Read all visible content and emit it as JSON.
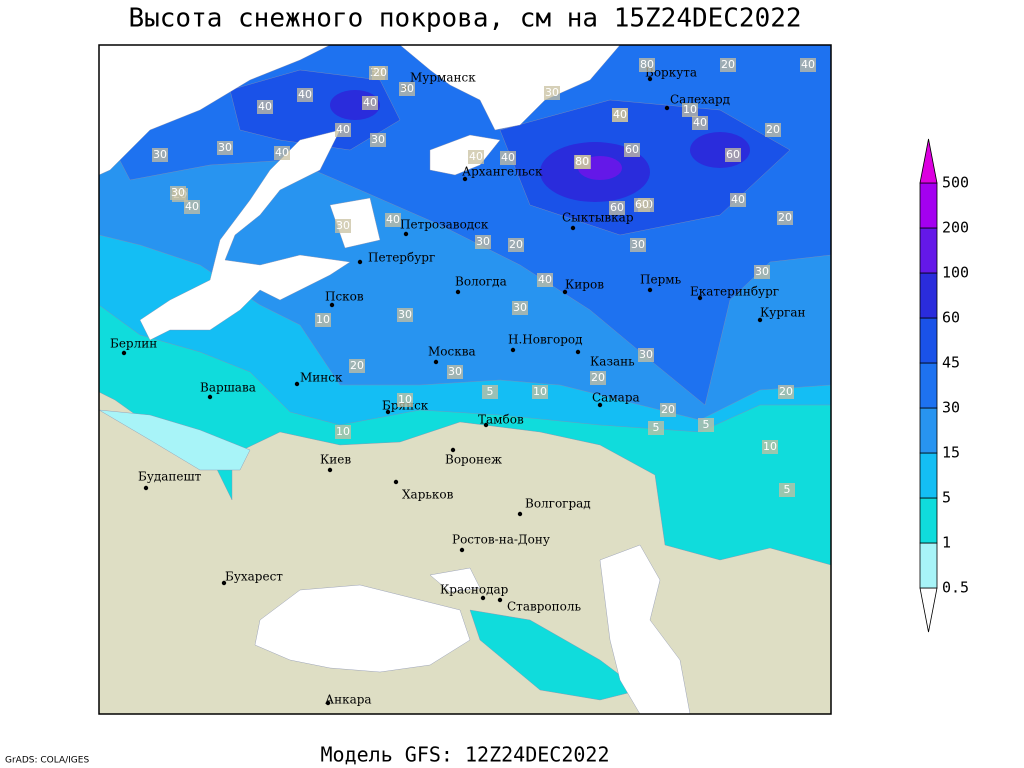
{
  "title": "Высота снежного покрова, см на 15Z24DEC2022",
  "footer": "Модель GFS: 12Z24DEC2022",
  "credit": "GrADS: COLA/IGES",
  "land_color": "#dedec4",
  "water_color": "#ffffff",
  "cities": [
    "Мурманск",
    "Воркута",
    "Салехард",
    "Архангельск",
    "Петрозаводск",
    "Сыктывкар",
    "Петербург",
    "Вологда",
    "Киров",
    "Пермь",
    "Екатеринбург",
    "Курган",
    "Псков",
    "Н.Новгород",
    "Казань",
    "Москва",
    "Минск",
    "Берлин",
    "Варшава",
    "Брянск",
    "Тамбов",
    "Самара",
    "Киев",
    "Воронеж",
    "Будапешт",
    "Харьков",
    "Волгоград",
    "Ростов-на-Дону",
    "Бухарест",
    "Краснодар",
    "Ставрополь",
    "Анкара"
  ],
  "contour_labels": [
    30,
    20,
    40,
    40,
    30,
    40,
    40,
    30,
    40,
    30,
    40,
    30,
    30,
    30,
    20,
    40,
    40,
    30,
    60,
    80,
    60,
    40,
    40,
    60,
    40,
    60,
    40,
    80,
    60,
    30,
    30,
    20,
    40,
    30,
    40,
    30,
    40,
    30,
    10,
    30,
    20,
    10,
    20,
    20,
    30,
    10,
    20,
    5,
    10,
    20,
    20,
    20,
    10,
    5,
    5,
    5,
    40,
    10
  ],
  "legend": {
    "levels": [
      0.5,
      1,
      5,
      15,
      30,
      45,
      60,
      100,
      200,
      500
    ],
    "colors": [
      "#ffffff",
      "#a8f4f8",
      "#10dcdc",
      "#14bef4",
      "#2894f0",
      "#1e72f0",
      "#1a52e8",
      "#2a2cdc",
      "#6418e8",
      "#a400f0",
      "#dc00e0"
    ]
  }
}
